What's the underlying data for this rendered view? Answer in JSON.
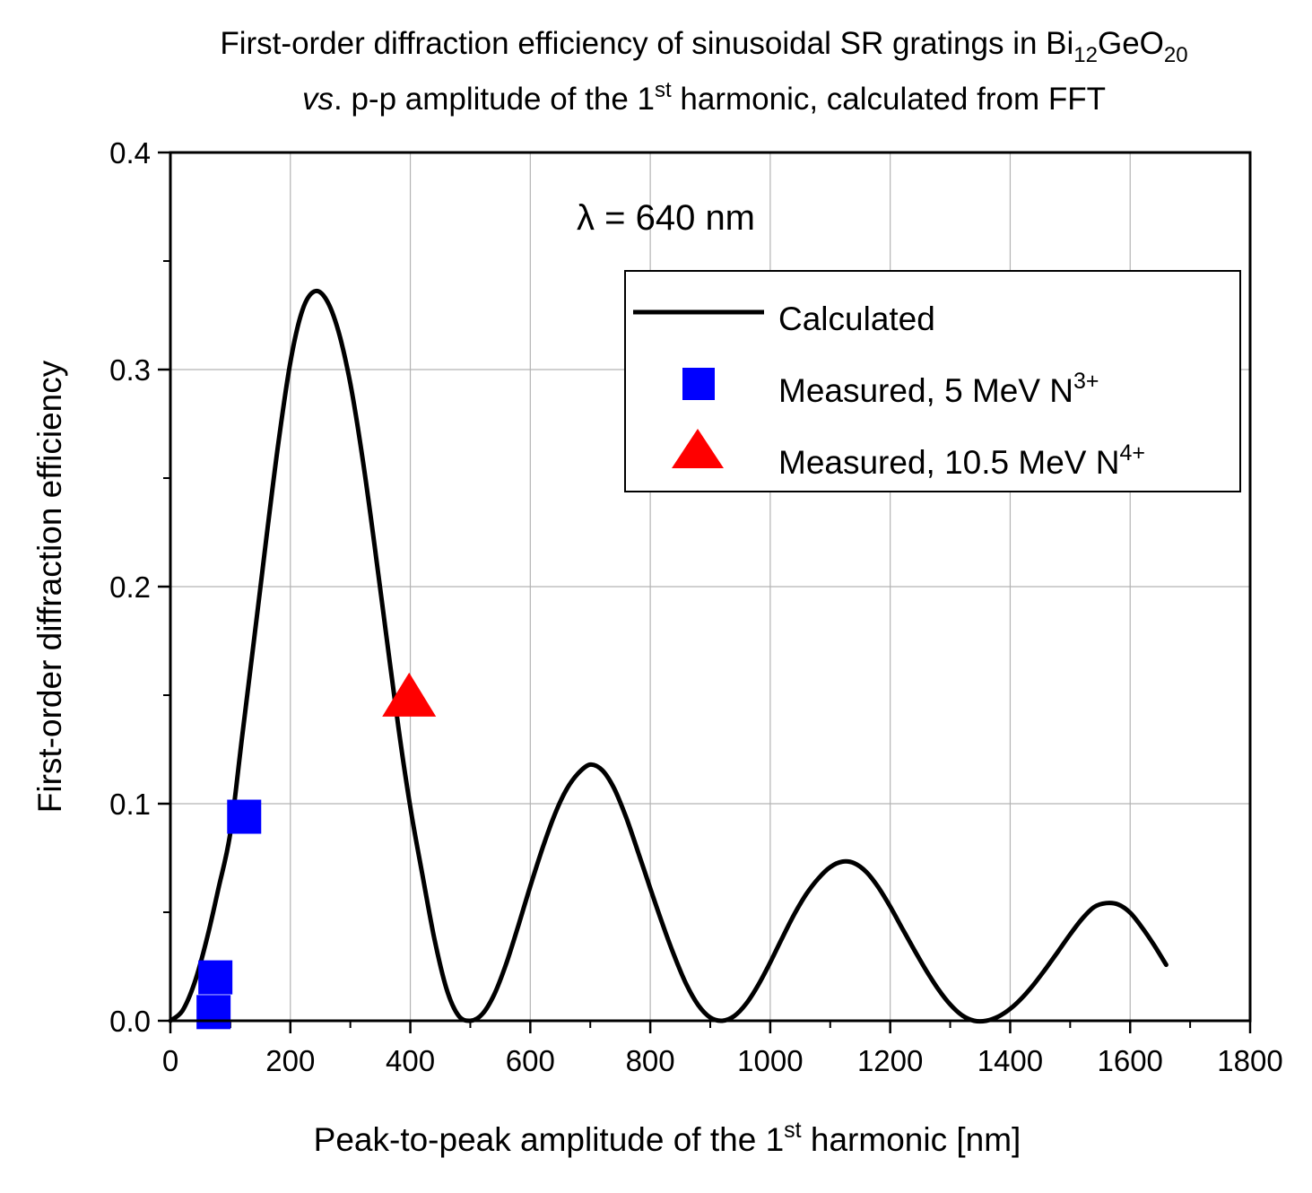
{
  "chart_data": {
    "type": "line",
    "title_line1": {
      "main": "First-order diffraction efficiency of sinusoidal SR gratings in Bi",
      "sub1": "12",
      "mid": "GeO",
      "sub2": "20"
    },
    "title_line2": {
      "italic": "vs",
      "main": ". p-p amplitude of the 1",
      "sup": "st",
      "rest": " harmonic, calculated from FFT"
    },
    "xlabel": {
      "main": "Peak-to-peak amplitude of the 1",
      "sup": "st",
      "rest": " harmonic [nm]"
    },
    "ylabel": "First-order diffraction efficiency",
    "annotation": "λ = 640 nm",
    "xlim": [
      0,
      1800
    ],
    "ylim": [
      0,
      0.4
    ],
    "x_ticks": [
      0,
      200,
      400,
      600,
      800,
      1000,
      1200,
      1400,
      1600,
      1800
    ],
    "x_tick_labels": [
      "0",
      "200",
      "400",
      "600",
      "800",
      "1000",
      "1200",
      "1400",
      "1600",
      "1800"
    ],
    "y_ticks": [
      0,
      0.1,
      0.2,
      0.3,
      0.4
    ],
    "y_tick_labels": [
      "0.0",
      "0.1",
      "0.2",
      "0.3",
      "0.4"
    ],
    "grid": true,
    "legend_position": "top-right",
    "series": [
      {
        "name": "Calculated",
        "kind": "line",
        "color": "#000000",
        "x": [
          0,
          20,
          40,
          60,
          80,
          100,
          120,
          140,
          160,
          180,
          200,
          220,
          240,
          260,
          280,
          300,
          320,
          340,
          360,
          380,
          400,
          420,
          440,
          460,
          480,
          500,
          520,
          540,
          560,
          580,
          600,
          620,
          640,
          660,
          680,
          700,
          720,
          740,
          760,
          780,
          800,
          820,
          840,
          860,
          880,
          900,
          920,
          940,
          960,
          980,
          1000,
          1020,
          1040,
          1060,
          1080,
          1100,
          1120,
          1140,
          1160,
          1180,
          1200,
          1220,
          1240,
          1260,
          1280,
          1300,
          1320,
          1340,
          1360,
          1380,
          1400,
          1420,
          1440,
          1460,
          1480,
          1500,
          1520,
          1540,
          1560,
          1580,
          1600,
          1620,
          1640,
          1660
        ],
        "y": [
          0.0,
          0.0046,
          0.0173,
          0.0368,
          0.0608,
          0.0867,
          0.1319,
          0.1766,
          0.2223,
          0.2661,
          0.3034,
          0.3273,
          0.336,
          0.3322,
          0.3178,
          0.2935,
          0.2598,
          0.2198,
          0.1774,
          0.1354,
          0.0983,
          0.0675,
          0.0379,
          0.015,
          0.0025,
          0.0,
          0.0031,
          0.0122,
          0.0264,
          0.0438,
          0.062,
          0.0792,
          0.0945,
          0.1064,
          0.114,
          0.118,
          0.1154,
          0.1069,
          0.0935,
          0.0775,
          0.061,
          0.0449,
          0.0299,
          0.0169,
          0.0072,
          0.0015,
          0.0,
          0.0022,
          0.0079,
          0.0165,
          0.0269,
          0.0382,
          0.049,
          0.0583,
          0.0655,
          0.0708,
          0.0733,
          0.0726,
          0.0686,
          0.0616,
          0.0526,
          0.0426,
          0.0327,
          0.0232,
          0.0146,
          0.0075,
          0.0025,
          0.0,
          0.0,
          0.0019,
          0.0055,
          0.0106,
          0.017,
          0.0243,
          0.032,
          0.0398,
          0.047,
          0.0524,
          0.0542,
          0.0536,
          0.0498,
          0.0429,
          0.0348,
          0.0258
        ]
      },
      {
        "name": "Measured, 5 MeV N",
        "name_sup": "3+",
        "kind": "square",
        "color": "#0000ff",
        "x": [
          123,
          75,
          72
        ],
        "y": [
          0.094,
          0.02,
          0.004
        ]
      },
      {
        "name": "Measured, 10.5 MeV N",
        "name_sup": "4+",
        "kind": "triangle",
        "color": "#ff0000",
        "x": [
          398
        ],
        "y": [
          0.148
        ]
      }
    ]
  }
}
